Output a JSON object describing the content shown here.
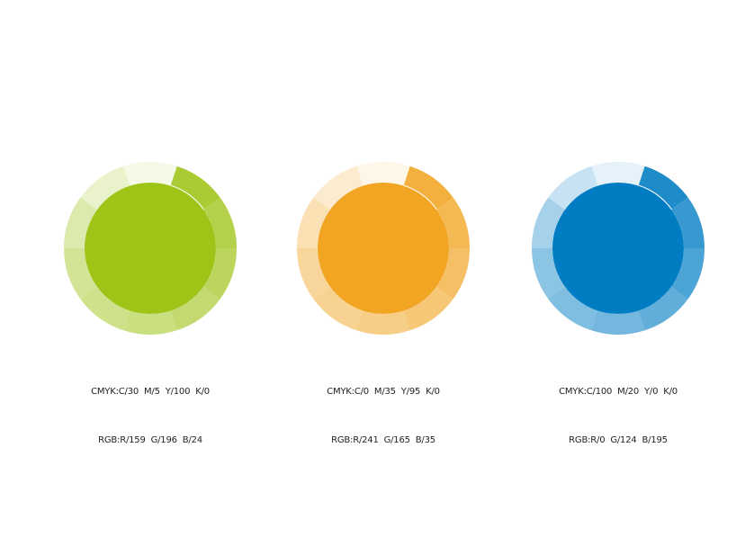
{
  "swatches": [
    {
      "name": "green",
      "color": "#9fc418",
      "cmyk": "CMYK:C/30  M/5  Y/100  K/0",
      "rgb": "RGB:R/159  G/196  B/24"
    },
    {
      "name": "orange",
      "color": "#f1a523",
      "cmyk": "CMYK:C/0  M/35  Y/95  K/0",
      "rgb": "RGB:R/241  G/165  B/35"
    },
    {
      "name": "blue",
      "color": "#007cc3",
      "cmyk": "CMYK:C/100  M/20  Y/0  K/0",
      "rgb": "RGB:R/0  G/124  B/195"
    }
  ]
}
